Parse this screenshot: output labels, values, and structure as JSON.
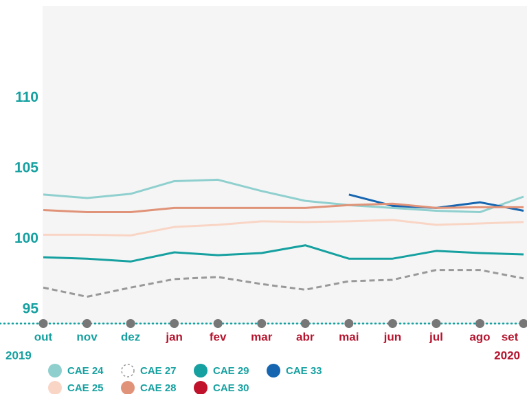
{
  "chart_data": {
    "type": "line",
    "categories": [
      "out",
      "nov",
      "dez",
      "jan",
      "fev",
      "mar",
      "abr",
      "mai",
      "jun",
      "jul",
      "ago",
      "set"
    ],
    "category_colors": [
      "#16a0a0",
      "#16a0a0",
      "#16a0a0",
      "#b5142e",
      "#b5142e",
      "#b5142e",
      "#b5142e",
      "#b5142e",
      "#b5142e",
      "#b5142e",
      "#b5142e",
      "#b5142e"
    ],
    "year_labels": [
      {
        "label": "2019",
        "color": "#16a0a0"
      },
      {
        "label": "2020",
        "color": "#b5142e"
      }
    ],
    "series": [
      {
        "name": "CAE 24",
        "color": "#8fd0cf",
        "values": [
          103.15,
          102.9,
          103.2,
          104.1,
          104.2,
          103.4,
          102.7,
          102.4,
          102.2,
          102.0,
          101.9,
          103.0
        ]
      },
      {
        "name": "CAE 27",
        "color": "#999999",
        "dashed": true,
        "values": [
          96.55,
          95.9,
          96.55,
          97.15,
          97.3,
          96.8,
          96.4,
          97.0,
          97.1,
          97.8,
          97.8,
          97.2
        ]
      },
      {
        "name": "CAE 29",
        "color": "#16a0a0",
        "values": [
          98.7,
          98.6,
          98.4,
          99.05,
          98.85,
          99.0,
          99.55,
          98.6,
          98.6,
          99.15,
          99.0,
          98.9
        ]
      },
      {
        "name": "CAE 33",
        "color": "#1565b0",
        "values": [
          null,
          null,
          null,
          null,
          null,
          null,
          null,
          103.15,
          102.35,
          102.2,
          102.6,
          102.0
        ]
      },
      {
        "name": "CAE 25",
        "color": "#f9d5c5",
        "values": [
          100.3,
          100.3,
          100.25,
          100.85,
          101.0,
          101.25,
          101.2,
          101.25,
          101.35,
          101.0,
          101.1,
          101.2
        ]
      },
      {
        "name": "CAE 28",
        "color": "#e09378",
        "values": [
          102.05,
          101.9,
          101.9,
          102.2,
          102.2,
          102.2,
          102.2,
          102.4,
          102.5,
          102.2,
          102.25,
          102.25
        ]
      },
      {
        "name": "CAE 30",
        "color": "#c0122a",
        "values": [
          null,
          null,
          null,
          null,
          null,
          null,
          null,
          null,
          null,
          null,
          null,
          null
        ]
      }
    ],
    "ylim": [
      94,
      116.5
    ],
    "yticks": [
      95,
      100,
      105,
      110
    ],
    "grid": false
  }
}
